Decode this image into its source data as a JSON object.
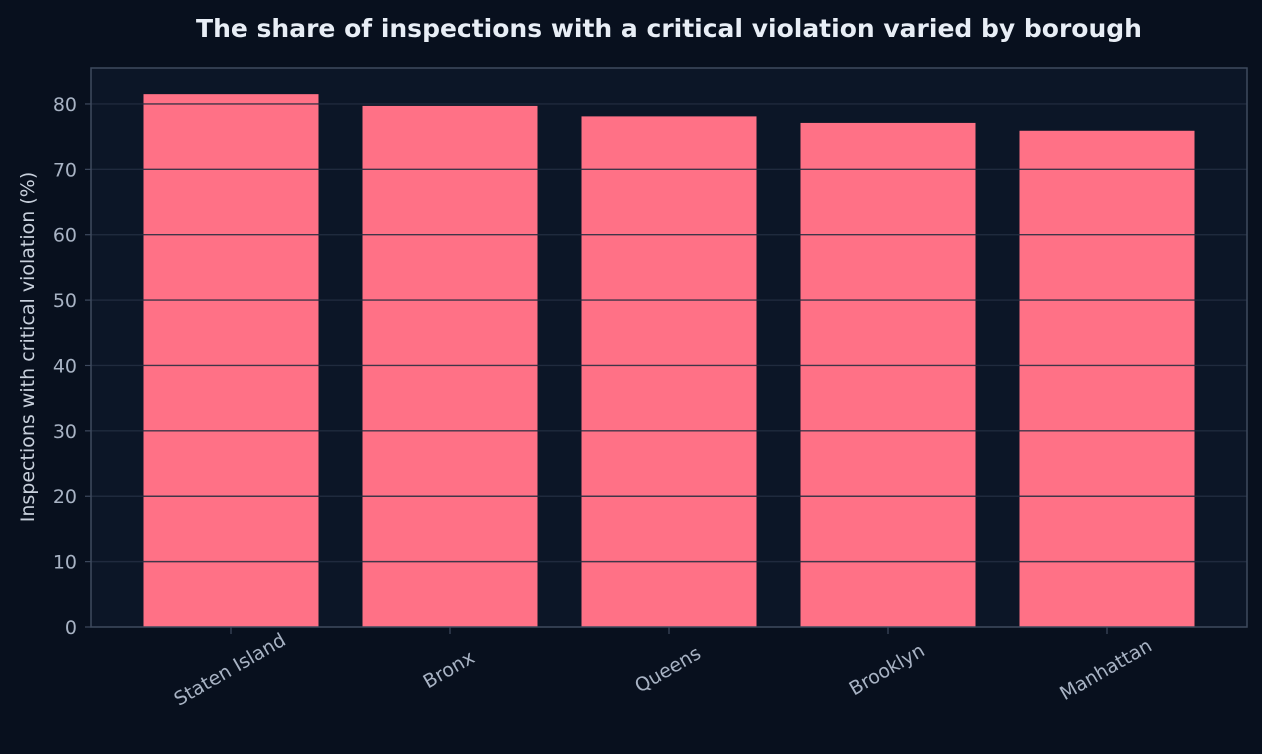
{
  "chart_data": {
    "type": "bar",
    "title": "The share of inspections with a critical violation varied by borough",
    "xlabel": "",
    "ylabel": "Inspections with critical violation (%)",
    "categories": [
      "Staten Island",
      "Bronx",
      "Queens",
      "Brooklyn",
      "Manhattan"
    ],
    "values": [
      81.5,
      79.7,
      78.1,
      77.1,
      75.9
    ],
    "yticks": [
      "0",
      "10",
      "20",
      "30",
      "40",
      "50",
      "60",
      "70",
      "80"
    ],
    "ylim": [
      0,
      85.5
    ],
    "grid": true,
    "legend": "none",
    "colors": {
      "background": "#08101e",
      "plot_background": "#0c1627",
      "bar": "#ff7186",
      "grid": "#2a3446",
      "axis": "#3e4a5e",
      "tick_label": "#a8b3c4",
      "axis_label": "#c8d0dc",
      "title": "#e8eef6"
    }
  }
}
